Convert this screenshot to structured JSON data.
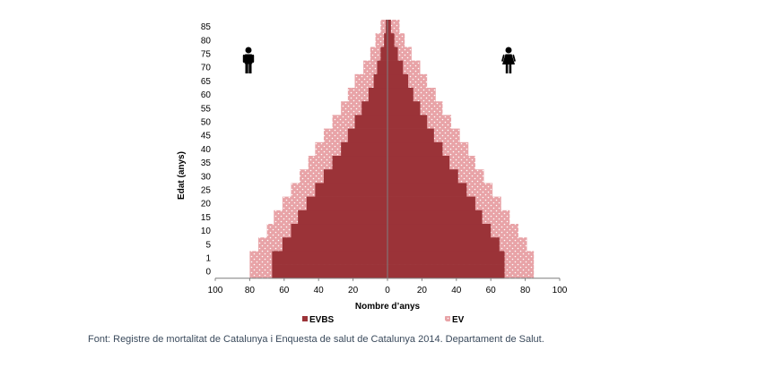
{
  "chart_data": {
    "type": "bar",
    "orientation": "horizontal-pyramid",
    "ylabel": "Edat (anys)",
    "xlabel": "Nombre d’anys",
    "age_groups": [
      "0",
      "1",
      "5",
      "10",
      "15",
      "20",
      "25",
      "30",
      "35",
      "40",
      "45",
      "50",
      "55",
      "60",
      "65",
      "70",
      "75",
      "80",
      "85"
    ],
    "x_ticks": [
      "100",
      "80",
      "60",
      "40",
      "20",
      "0",
      "20",
      "40",
      "60",
      "80",
      "100"
    ],
    "xlim": [
      -100,
      100
    ],
    "series": [
      {
        "name": "EVBS",
        "color": "#9b3338",
        "men": [
          67,
          67,
          61,
          56,
          52,
          47,
          42,
          37,
          32,
          27,
          23,
          19,
          15,
          11,
          8,
          6,
          4,
          2,
          1
        ],
        "women": [
          68,
          68,
          65,
          60,
          55,
          51,
          46,
          41,
          36,
          32,
          27,
          23,
          19,
          15,
          12,
          9,
          6,
          4,
          2
        ]
      },
      {
        "name": "EV",
        "color": "#e8a3a7",
        "men": [
          80,
          80,
          75,
          70,
          66,
          61,
          56,
          51,
          46,
          42,
          37,
          32,
          27,
          23,
          19,
          14,
          10,
          7,
          4
        ],
        "women": [
          85,
          85,
          81,
          76,
          71,
          66,
          61,
          56,
          51,
          47,
          42,
          37,
          32,
          28,
          23,
          19,
          14,
          10,
          7
        ]
      }
    ],
    "legend_position": "bottom",
    "grid": false,
    "icons": {
      "left": "male-figure-icon",
      "right": "female-figure-icon"
    }
  },
  "source_note": "Font: Registre de mortalitat de Catalunya i Enquesta de salut de Catalunya 2014. Departament de Salut."
}
